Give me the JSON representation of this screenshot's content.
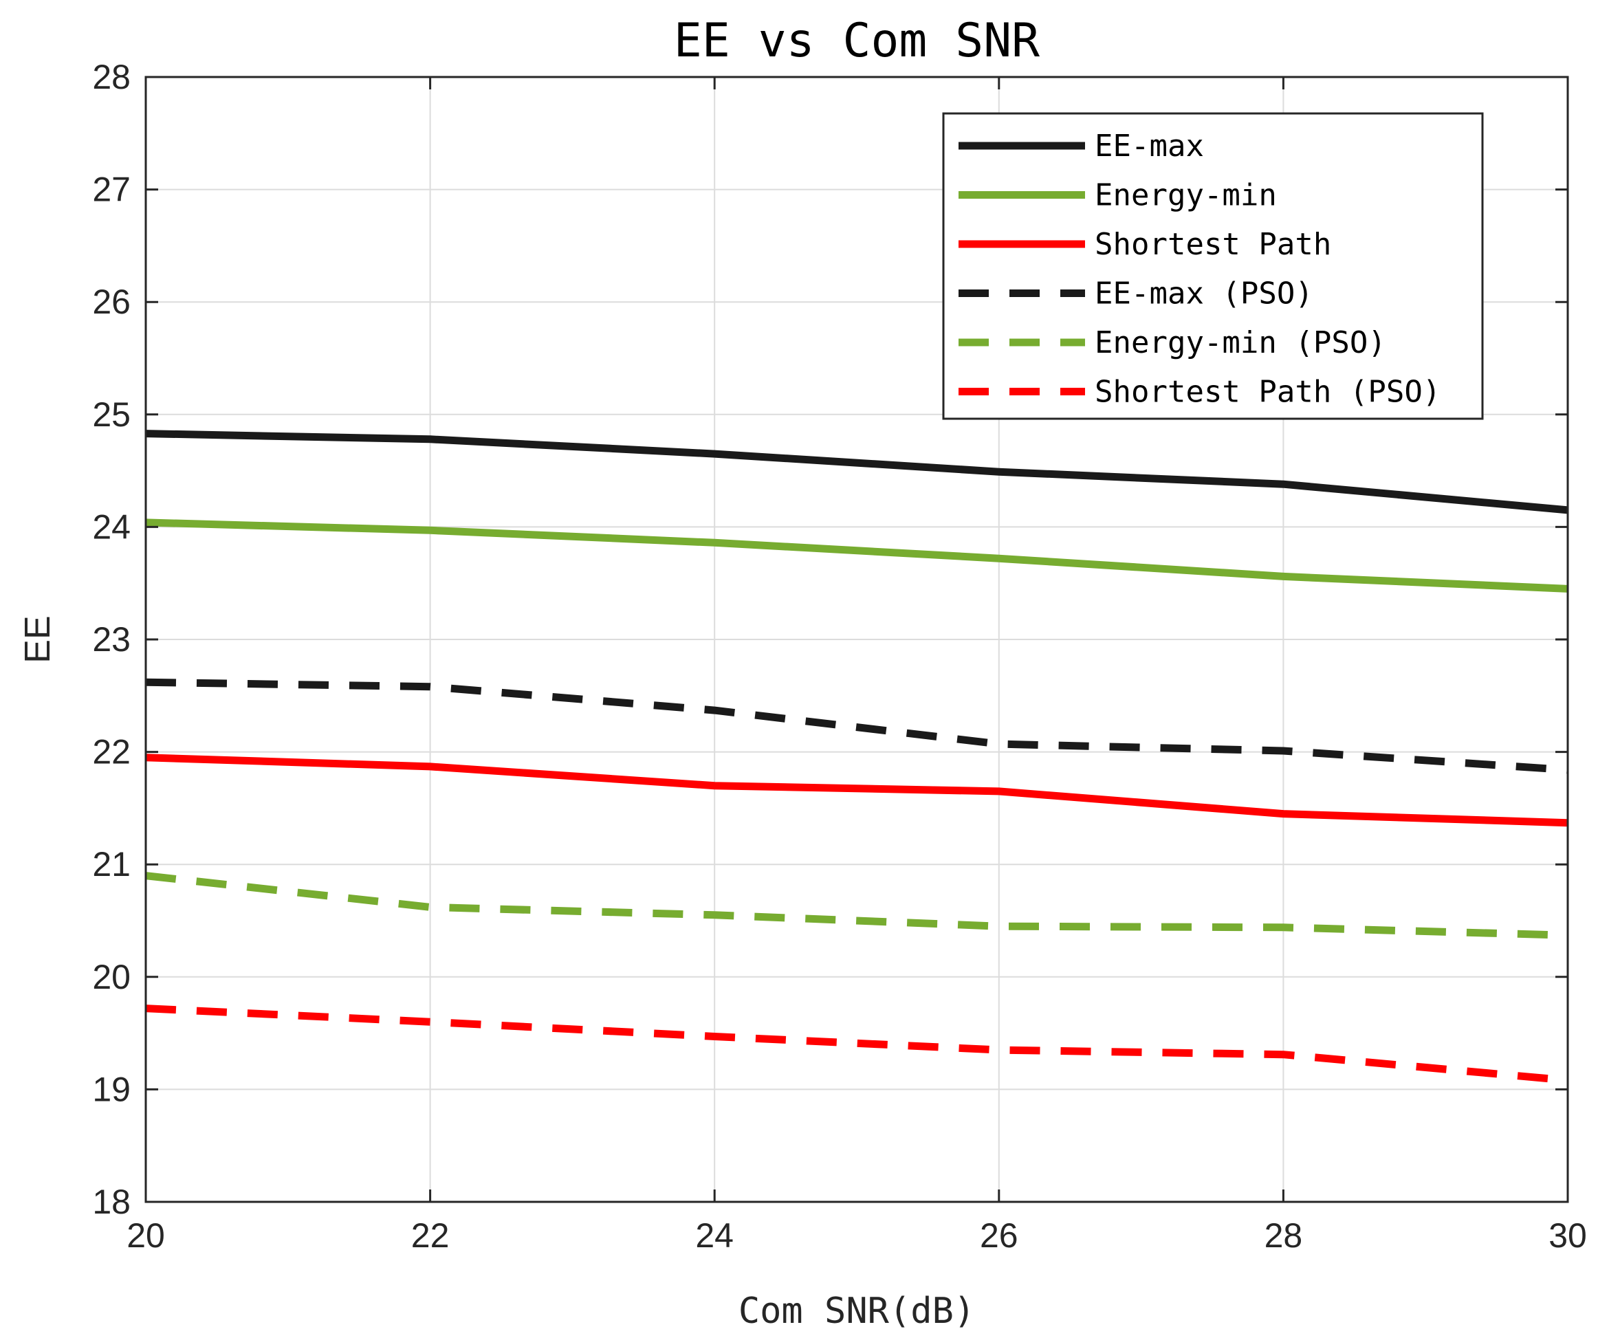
{
  "chart_data": {
    "type": "line",
    "title": "EE vs Com SNR",
    "xlabel": "Com SNR(dB)",
    "ylabel": "EE",
    "xlim": [
      20,
      30
    ],
    "ylim": [
      18,
      28
    ],
    "x": [
      20,
      22,
      24,
      26,
      28,
      30
    ],
    "xticks": [
      "20",
      "22",
      "24",
      "26",
      "28",
      "30"
    ],
    "yticks": [
      "18",
      "19",
      "20",
      "21",
      "22",
      "23",
      "24",
      "25",
      "26",
      "27",
      "28"
    ],
    "grid": true,
    "legend_position": "top-right",
    "series": [
      {
        "name": "EE-max",
        "color": "#1a1a1a",
        "style": "solid",
        "values": [
          24.83,
          24.78,
          24.65,
          24.49,
          24.38,
          24.15
        ]
      },
      {
        "name": "Energy-min",
        "color": "#77ac30",
        "style": "solid",
        "values": [
          24.04,
          23.97,
          23.86,
          23.72,
          23.56,
          23.45
        ]
      },
      {
        "name": "Shortest Path",
        "color": "#ff0000",
        "style": "solid",
        "values": [
          21.95,
          21.87,
          21.7,
          21.65,
          21.45,
          21.37
        ]
      },
      {
        "name": "EE-max (PSO)",
        "color": "#1a1a1a",
        "style": "dashed",
        "values": [
          22.62,
          22.58,
          22.37,
          22.07,
          22.01,
          21.84
        ]
      },
      {
        "name": "Energy-min (PSO)",
        "color": "#77ac30",
        "style": "dashed",
        "values": [
          20.9,
          20.62,
          20.55,
          20.45,
          20.44,
          20.37
        ]
      },
      {
        "name": "Shortest Path (PSO)",
        "color": "#ff0000",
        "style": "dashed",
        "values": [
          19.72,
          19.6,
          19.47,
          19.35,
          19.31,
          19.08
        ]
      }
    ]
  }
}
